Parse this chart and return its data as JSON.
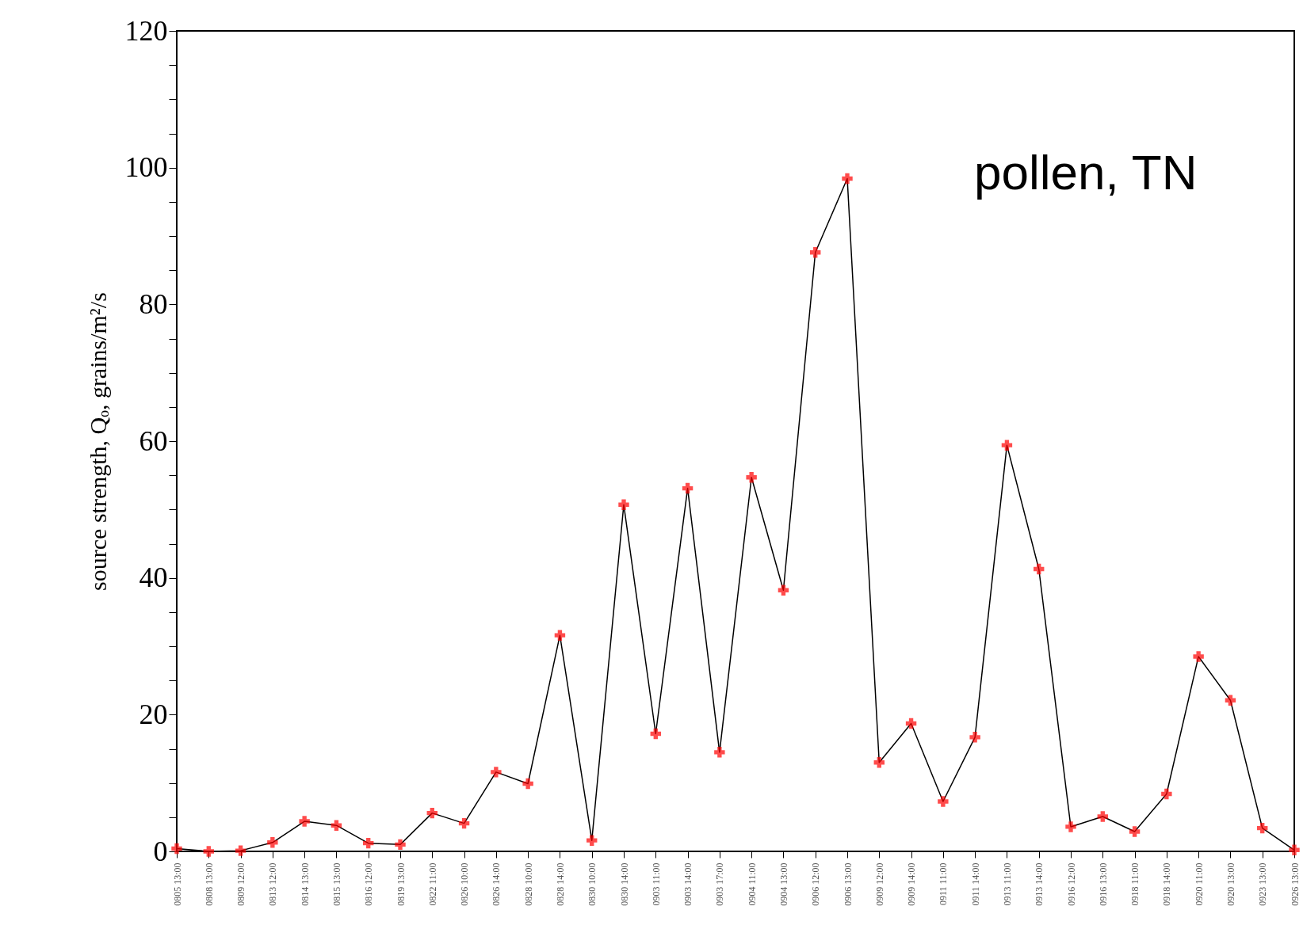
{
  "chart_data": {
    "type": "line",
    "ylabel": "source strength, Qₒ, grains/m²/s",
    "annotations": [
      "pollen, TN"
    ],
    "categories": [
      "0805 13:00",
      "0808 13:00",
      "0809 12:00",
      "0813 12:00",
      "0814 13:00",
      "0815 13:00",
      "0816 12:00",
      "0819 13:00",
      "0822 11:00",
      "0826 10:00",
      "0826 14:00",
      "0828 10:00",
      "0828 14:00",
      "0830 10:00",
      "0830 14:00",
      "0903 11:00",
      "0903 14:00",
      "0903 17:00",
      "0904 11:00",
      "0904 13:00",
      "0906 12:00",
      "0906 13:00",
      "0909 12:00",
      "0909 14:00",
      "0911 11:00",
      "0911 14:00",
      "0913 11:00",
      "0913 14:00",
      "0916 12:00",
      "0916 13:00",
      "0918 11:00",
      "0918 14:00",
      "0920 11:00",
      "0920 13:00",
      "0923 13:00",
      "0926 13:00"
    ],
    "series": [
      {
        "color": "#000000",
        "colors": [
          "#ff0000",
          "#ff0000",
          "#ff0000",
          "#ff0000",
          "#ff0000",
          "#ff0000",
          "#ff0000",
          "#ff0000",
          "#ff0000",
          "#ff0000",
          "#ff0000",
          "#ff0000",
          "#ff0000",
          "#ff0000",
          "#ff0000",
          "#ff0000",
          "#ff0000",
          "#ff0000",
          "#ff0000",
          "#ff0000",
          "#ff0000",
          "#ff0000",
          "#ff0000",
          "#ff0000",
          "#ff0000",
          "#ff0000",
          "#ff0000",
          "#ff0000",
          "#ff0000",
          "#ff0000",
          "#ff0000",
          "#ff0000",
          "#ff0000",
          "#ff0000",
          "#ff0000",
          "#ff0000"
        ],
        "values": [
          0.4,
          0,
          0.1,
          1.3,
          4.4,
          3.8,
          1.2,
          1.0,
          5.6,
          4.1,
          11.6,
          9.9,
          31.6,
          1.6,
          50.7,
          17.2,
          53.1,
          14.5,
          54.7,
          38.2,
          87.6,
          98.4,
          13.0,
          18.7,
          7.3,
          16.7,
          59.4,
          41.3,
          3.6,
          5.1,
          2.9,
          8.4,
          28.5,
          22.1,
          3.4,
          0.2
        ]
      }
    ],
    "ylim": [
      0,
      120
    ],
    "yticks": [
      0,
      {
        "value": 5,
        "label": null
      },
      {
        "value": 10,
        "label": null
      },
      {
        "value": 15,
        "label": null
      },
      20,
      {
        "value": 25,
        "label": null
      },
      {
        "value": 30,
        "label": null
      },
      {
        "value": 35,
        "label": null
      },
      40,
      {
        "value": 45,
        "label": null
      },
      {
        "value": 50,
        "label": null
      },
      {
        "value": 55,
        "label": null
      },
      60,
      {
        "value": 65,
        "label": null
      },
      {
        "value": 70,
        "label": null
      },
      {
        "value": 75,
        "label": null
      },
      80,
      {
        "value": 85,
        "label": null
      },
      {
        "value": 90,
        "label": null
      },
      {
        "value": 95,
        "label": null
      },
      100,
      {
        "value": 105,
        "label": null
      },
      {
        "value": 110,
        "label": null
      },
      {
        "value": 115,
        "label": null
      },
      120
    ],
    "marker": "cross"
  }
}
